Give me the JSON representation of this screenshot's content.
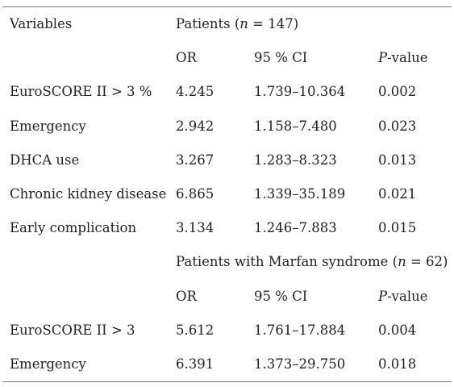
{
  "table": {
    "header": {
      "variables": "Variables",
      "group1_prefix": "Patients (",
      "n_symbol": "n",
      "group1_suffix": " = 147)"
    },
    "subheader": {
      "or": "OR",
      "ci": "95 % CI",
      "p_symbol": "P",
      "p_suffix": "-value"
    },
    "group1_rows": [
      {
        "variable": "EuroSCORE II > 3 %",
        "or": "4.245",
        "ci": "1.739–10.364",
        "p": "0.002"
      },
      {
        "variable": "Emergency",
        "or": "2.942",
        "ci": "1.158–7.480",
        "p": "0.023"
      },
      {
        "variable": "DHCA use",
        "or": "3.267",
        "ci": "1.283–8.323",
        "p": "0.013"
      },
      {
        "variable": "Chronic kidney disease",
        "or": "6.865",
        "ci": "1.339–35.189",
        "p": "0.021"
      },
      {
        "variable": "Early complication",
        "or": "3.134",
        "ci": "1.246–7.883",
        "p": "0.015"
      }
    ],
    "group2_header": {
      "prefix": "Patients with Marfan syndrome (",
      "n_symbol": "n",
      "suffix": " = 62)"
    },
    "group2_rows": [
      {
        "variable": "EuroSCORE II > 3",
        "or": "5.612",
        "ci": "1.761–17.884",
        "p": "0.004"
      },
      {
        "variable": "Emergency",
        "or": "6.391",
        "ci": "1.373–29.750",
        "p": "0.018"
      }
    ]
  }
}
